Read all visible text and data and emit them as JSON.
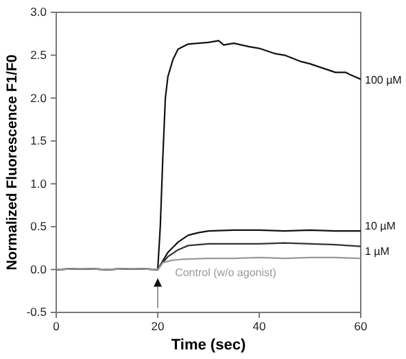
{
  "chart_data": {
    "type": "line",
    "xlabel": "Time (sec)",
    "ylabel": "Normalized Fluorescence  F1/F0",
    "xlim": [
      0,
      60
    ],
    "ylim": [
      -0.5,
      3.0
    ],
    "xticks": [
      0,
      20,
      40,
      60
    ],
    "yticks": [
      {
        "value": -0.5,
        "label": "-0.5"
      },
      {
        "value": 0,
        "label": "0.0"
      },
      {
        "value": 0.5,
        "label": "0.5"
      },
      {
        "value": 1,
        "label": "1.0"
      },
      {
        "value": 1.5,
        "label": "1.5"
      },
      {
        "value": 2,
        "label": "2.0"
      },
      {
        "value": 2.5,
        "label": "2.5"
      },
      {
        "value": 3,
        "label": "3.0"
      }
    ],
    "grid": false,
    "marker": "none",
    "line_style": "solid",
    "series": [
      {
        "name": "100 µM",
        "color": "#111111",
        "x": [
          0,
          5,
          10,
          15,
          20,
          20.5,
          21,
          21.5,
          22,
          23,
          24,
          26,
          28,
          30,
          32,
          33,
          35,
          38,
          40,
          43,
          45,
          48,
          50,
          53,
          55,
          57,
          58,
          60
        ],
        "values": [
          0,
          0.01,
          0,
          0.01,
          0,
          0.5,
          1.3,
          2.0,
          2.25,
          2.45,
          2.57,
          2.63,
          2.64,
          2.65,
          2.67,
          2.62,
          2.64,
          2.6,
          2.58,
          2.52,
          2.5,
          2.43,
          2.4,
          2.34,
          2.3,
          2.3,
          2.27,
          2.22
        ]
      },
      {
        "name": "10 µM",
        "color": "#111111",
        "x": [
          0,
          5,
          10,
          15,
          20,
          21,
          22,
          24,
          26,
          28,
          30,
          35,
          40,
          45,
          50,
          55,
          60
        ],
        "values": [
          0,
          0.01,
          0,
          0.01,
          0,
          0.1,
          0.2,
          0.32,
          0.4,
          0.43,
          0.45,
          0.46,
          0.46,
          0.45,
          0.46,
          0.45,
          0.45
        ]
      },
      {
        "name": "1 µM",
        "color": "#333333",
        "x": [
          0,
          5,
          10,
          15,
          20,
          21,
          22,
          24,
          26,
          28,
          30,
          35,
          40,
          45,
          50,
          55,
          60
        ],
        "values": [
          0,
          0.01,
          0,
          0.01,
          0,
          0.08,
          0.15,
          0.23,
          0.28,
          0.29,
          0.3,
          0.3,
          0.3,
          0.31,
          0.3,
          0.29,
          0.27
        ]
      },
      {
        "name": "Control (w/o agonist)",
        "color": "#999999",
        "x": [
          0,
          5,
          10,
          15,
          20,
          21,
          23,
          25,
          30,
          35,
          40,
          45,
          50,
          55,
          60
        ],
        "values": [
          0,
          0.01,
          0,
          0.01,
          0,
          0.08,
          0.11,
          0.12,
          0.13,
          0.13,
          0.14,
          0.13,
          0.14,
          0.14,
          0.13
        ]
      }
    ]
  }
}
